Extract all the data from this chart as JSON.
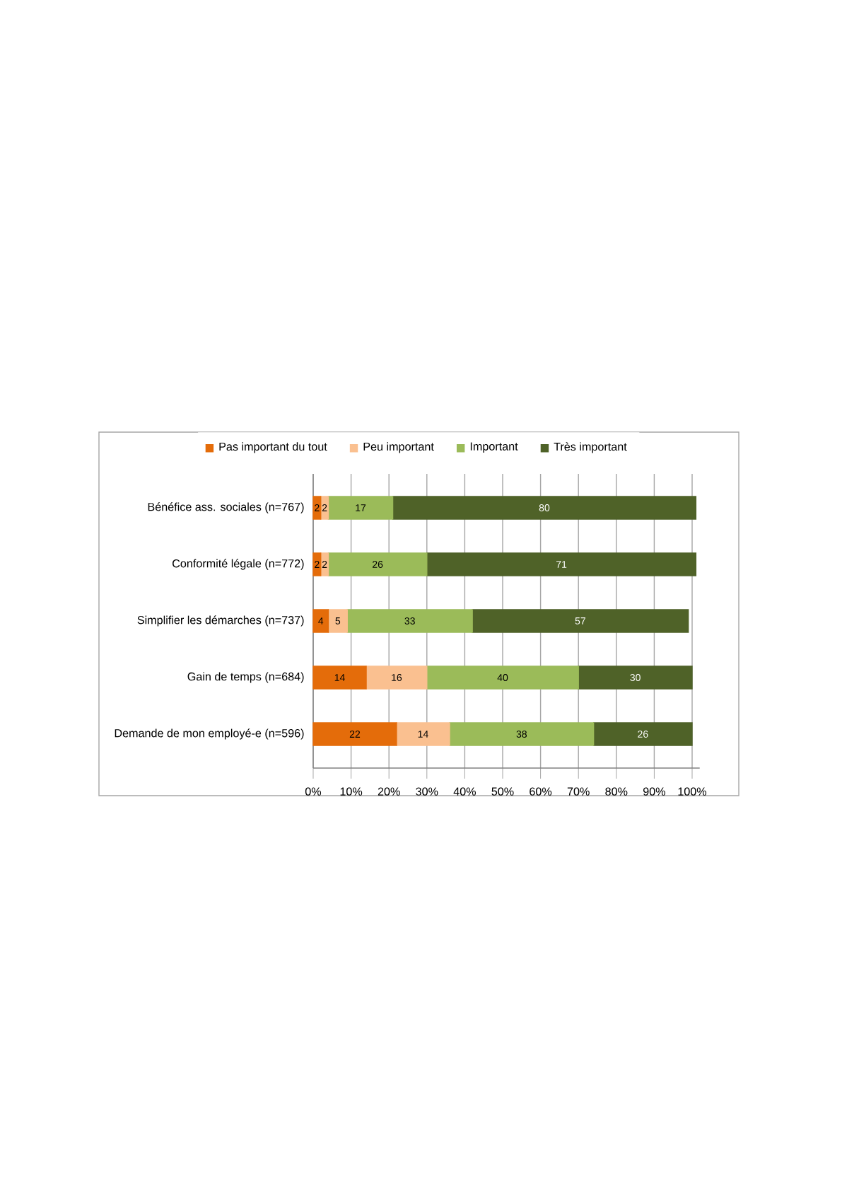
{
  "chart_data": {
    "type": "bar",
    "orientation": "horizontal",
    "stacked": true,
    "data_labels": true,
    "grid": "x",
    "legend": "top",
    "categories": [
      "Bénéfice ass. sociales (n=767)",
      "Conformité légale (n=772)",
      "Simplifier les démarches (n=737)",
      "Gain de temps (n=684)",
      "Demande de mon employé-e (n=596)"
    ],
    "series": [
      {
        "name": "Pas important du tout",
        "color": "#e46c0a",
        "values": [
          2,
          2,
          4,
          14,
          22
        ]
      },
      {
        "name": "Peu important",
        "color": "#fac090",
        "values": [
          2,
          2,
          5,
          16,
          14
        ]
      },
      {
        "name": "Important",
        "color": "#9bbb59",
        "values": [
          17,
          26,
          33,
          40,
          38
        ]
      },
      {
        "name": "Très important",
        "color": "#4f6228",
        "values": [
          80,
          71,
          57,
          30,
          26
        ]
      }
    ],
    "xlim": [
      0,
      102
    ],
    "xticks": [
      {
        "value": 0,
        "label": "0%"
      },
      {
        "value": 10,
        "label": "10%"
      },
      {
        "value": 20,
        "label": "20%"
      },
      {
        "value": 30,
        "label": "30%"
      },
      {
        "value": 40,
        "label": "40%"
      },
      {
        "value": 50,
        "label": "50%"
      },
      {
        "value": 60,
        "label": "60%"
      },
      {
        "value": 70,
        "label": "70%"
      },
      {
        "value": 80,
        "label": "80%"
      },
      {
        "value": 90,
        "label": "90%"
      },
      {
        "value": 100,
        "label": "100%"
      }
    ]
  }
}
